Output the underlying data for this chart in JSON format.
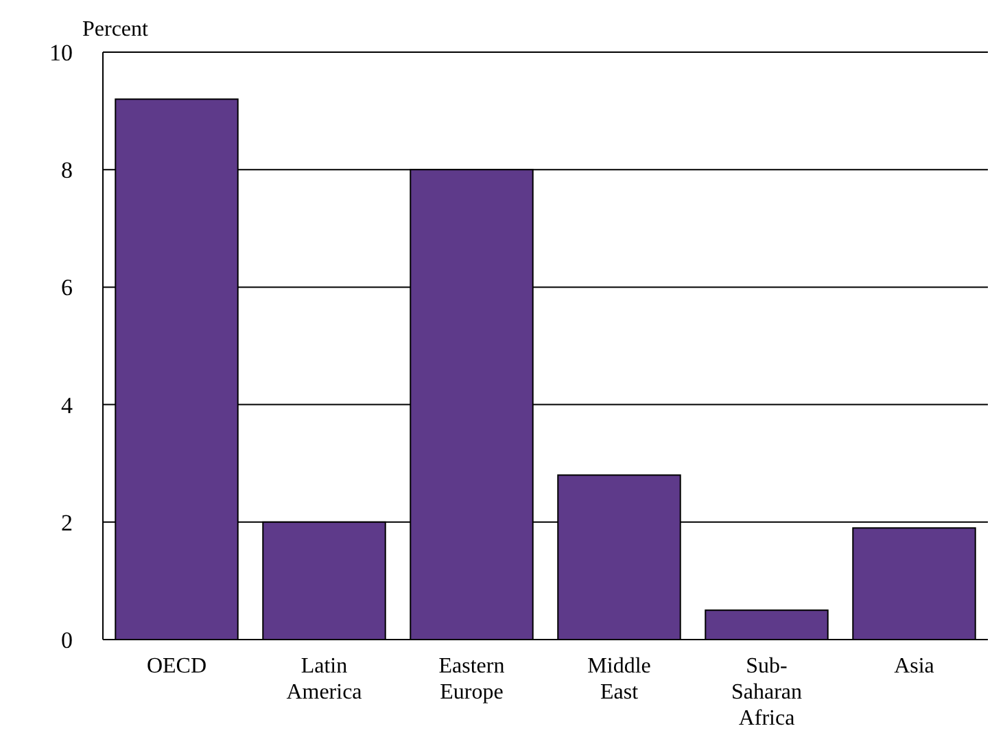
{
  "chart_data": {
    "type": "bar",
    "ylabel": "Percent",
    "categories": [
      "OECD",
      "Latin America",
      "Eastern Europe",
      "Middle East",
      "Sub-Saharan Africa",
      "Asia"
    ],
    "values": [
      9.2,
      2.0,
      8.0,
      2.8,
      0.5,
      1.9
    ],
    "color": "#5e3a8a",
    "ylim": [
      0,
      10
    ],
    "yticks": [
      0,
      2,
      4,
      6,
      8,
      10
    ],
    "grid": "y"
  }
}
